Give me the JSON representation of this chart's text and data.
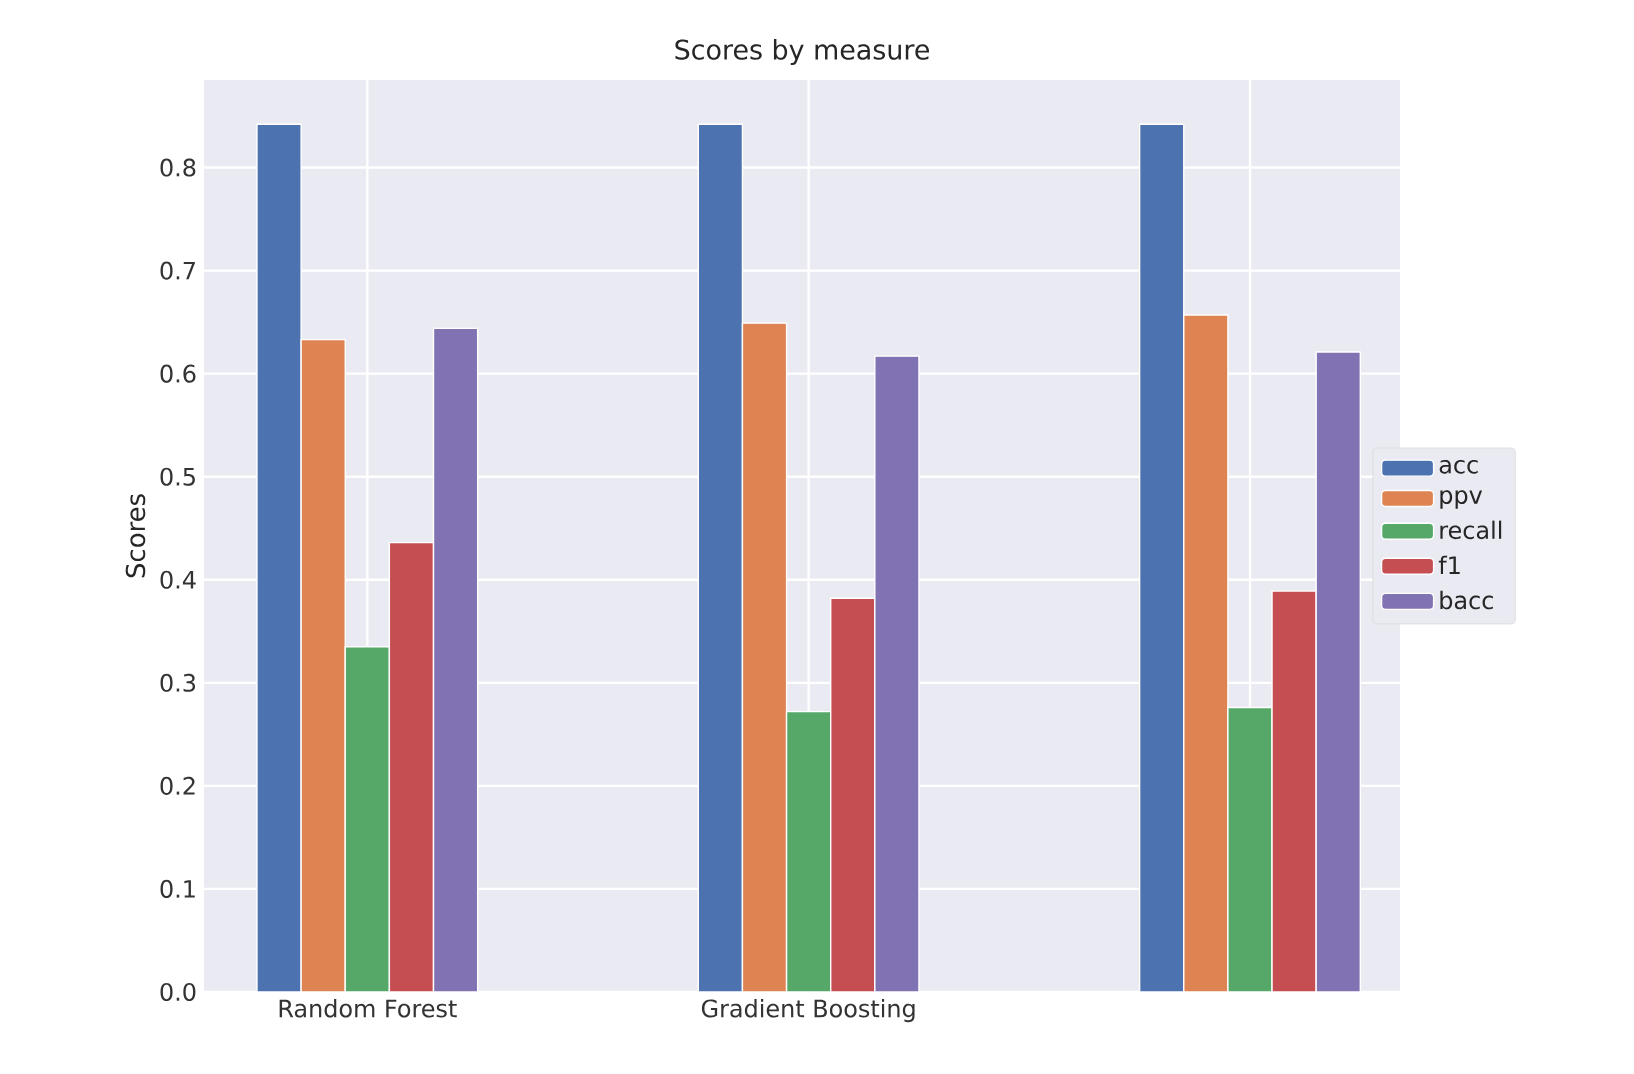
{
  "chart_data": {
    "type": "bar",
    "title": "Scores by measure",
    "ylabel": "Scores",
    "categories": [
      "Random Forest",
      "Gradient Boosting",
      null
    ],
    "series": [
      {
        "name": "acc",
        "color": "#4c72b0",
        "values": [
          0.842,
          0.842,
          0.842
        ]
      },
      {
        "name": "ppv",
        "color": "#dd8452",
        "values": [
          0.633,
          0.649,
          0.657
        ]
      },
      {
        "name": "recall",
        "color": "#55a868",
        "values": [
          0.335,
          0.272,
          0.276
        ]
      },
      {
        "name": "f1",
        "color": "#c44e52",
        "values": [
          0.436,
          0.382,
          0.389
        ]
      },
      {
        "name": "bacc",
        "color": "#8172b3",
        "values": [
          0.644,
          0.617,
          0.621
        ]
      }
    ],
    "ylim": [
      0,
      0.885
    ],
    "yticks": [
      {
        "value": 0,
        "label": "0.0"
      },
      0.1,
      0.2,
      0.3,
      0.4,
      0.5,
      0.6,
      0.7,
      0.8
    ],
    "grid": true,
    "legend": "right"
  }
}
